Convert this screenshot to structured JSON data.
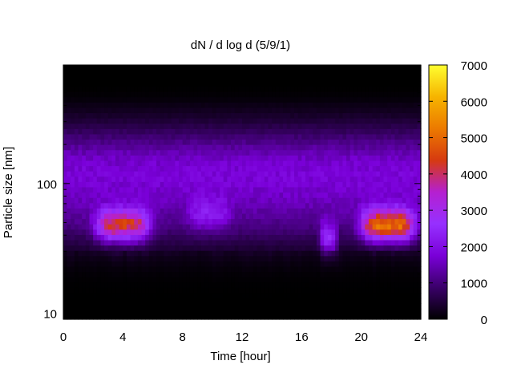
{
  "chart_data": {
    "type": "heatmap",
    "title": "dN / d log d (5/9/1)",
    "xlabel": "Time [hour]",
    "ylabel": "Particle size [nm]",
    "xlim": [
      0,
      24
    ],
    "ylim": [
      9,
      820
    ],
    "y_scale": "log",
    "x_ticks": [
      0,
      4,
      8,
      12,
      16,
      20,
      24
    ],
    "x_tick_labels": [
      "0",
      "4",
      "8",
      "12",
      "16",
      "20",
      "24"
    ],
    "y_ticks": [
      10,
      100
    ],
    "y_tick_labels": [
      "10",
      "100"
    ],
    "colorbar": {
      "range": [
        0,
        7000
      ],
      "ticks": [
        0,
        1000,
        2000,
        3000,
        4000,
        5000,
        6000,
        7000
      ],
      "tick_labels": [
        "0",
        "1000",
        "2000",
        "3000",
        "4000",
        "5000",
        "6000",
        "7000"
      ],
      "palette": [
        "#000000",
        "#3a0069",
        "#7a00d8",
        "#9630ff",
        "#b520d0",
        "#d63a10",
        "#ec7a00",
        "#f6b400",
        "#ffff30"
      ]
    },
    "grid": false,
    "legend": "colorbar-right",
    "peaks": [
      {
        "t_center": 4.0,
        "t_width": 1.8,
        "d_center": 48,
        "amplitude": 3200
      },
      {
        "t_center": 9.8,
        "t_width": 1.4,
        "d_center": 58,
        "amplitude": 900
      },
      {
        "t_center": 17.8,
        "t_width": 0.6,
        "d_center": 38,
        "amplitude": 1700
      },
      {
        "t_center": 21.8,
        "t_width": 1.8,
        "d_center": 48,
        "amplitude": 4000
      }
    ]
  }
}
